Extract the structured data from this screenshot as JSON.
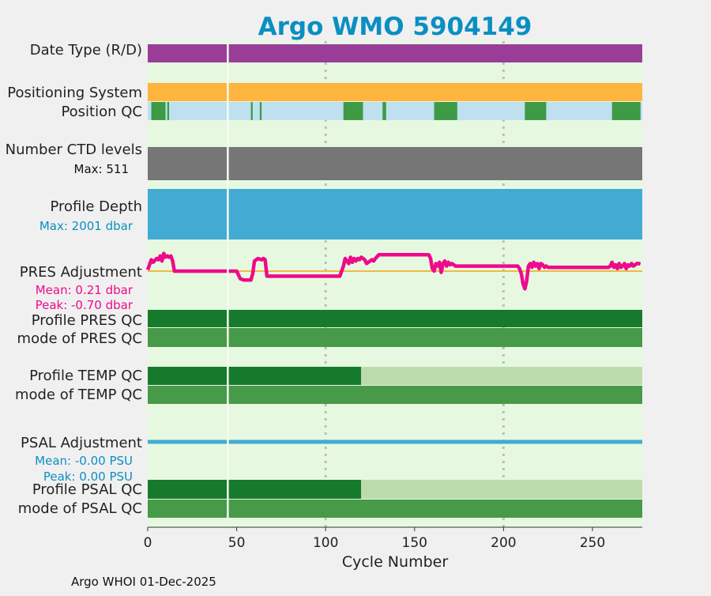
{
  "chart_data": {
    "type": "bar",
    "title": "Argo WMO 5904149",
    "xlabel": "Cycle Number",
    "xlim": [
      0,
      278
    ],
    "xticks": [
      0,
      50,
      100,
      150,
      200,
      250
    ],
    "vertical_gridlines": [
      100,
      200
    ],
    "footer": "Argo WHOI 01-Dec-2025",
    "colors": {
      "figure_bg": "#f0f0f0",
      "plot_bg": "#e6f9e0",
      "title": "#0a8fc2",
      "date_type": "#9a3d98",
      "positioning": "#ffb43e",
      "qc_good": "#3e9a45",
      "qc_missing": "#bee0ef",
      "ctd": "#767676",
      "depth": "#43abd3",
      "pres_line": "#ee0a8a",
      "pres_zero": "#f2b84a",
      "qc_dark": "#167a2c",
      "qc_mode": "#479a48",
      "qc_light": "#bcdcad",
      "psal_line": "#43abd3"
    },
    "rows": {
      "date_type": "Date Type (R/D)",
      "positioning": "Positioning System",
      "position_qc": "Position QC",
      "ctd_levels": "Number CTD levels",
      "ctd_max": "Max: 511",
      "profile_depth": "Profile Depth",
      "depth_max": "Max: 2001 dbar",
      "pres_adjustment": "PRES Adjustment",
      "pres_mean": "Mean: 0.21 dbar",
      "pres_peak": "Peak: -0.70 dbar",
      "profile_pres_qc": "Profile PRES QC",
      "mode_pres_qc": "mode of PRES QC",
      "profile_temp_qc": "Profile TEMP QC",
      "mode_temp_qc": "mode of TEMP QC",
      "psal_adjustment": "PSAL Adjustment",
      "psal_mean": "Mean: -0.00 PSU",
      "psal_peak": "Peak: 0.00 PSU",
      "profile_psal_qc": "Profile PSAL QC",
      "mode_psal_qc": "mode of PSAL QC"
    },
    "gap_cycle": 45,
    "position_qc_good_ranges": [
      [
        2,
        10
      ],
      [
        11,
        12
      ],
      [
        58,
        59
      ],
      [
        63,
        64
      ],
      [
        110,
        121
      ],
      [
        132,
        134
      ],
      [
        161,
        174
      ],
      [
        212,
        224
      ],
      [
        261,
        277
      ]
    ],
    "ctd_max_levels": 511,
    "depth_max_dbar": 2001,
    "pres_adjustment_series": {
      "x": [
        0,
        2,
        3,
        5,
        6,
        7,
        8,
        9,
        10,
        11,
        12,
        13,
        14,
        15,
        20,
        30,
        40,
        44,
        46,
        50,
        52,
        54,
        56,
        58,
        59,
        60,
        61,
        62,
        64,
        65,
        66,
        67,
        68,
        80,
        95,
        108,
        109,
        110,
        111,
        112,
        113,
        114,
        115,
        116,
        117,
        118,
        119,
        120,
        121,
        122,
        123,
        124,
        125,
        126,
        127,
        128,
        130,
        132,
        133,
        135,
        140,
        150,
        158,
        159,
        160,
        161,
        162,
        163,
        164,
        165,
        166,
        167,
        168,
        169,
        170,
        171,
        172,
        173,
        174,
        175,
        180,
        190,
        200,
        205,
        208,
        209,
        210,
        211,
        212,
        213,
        214,
        215,
        216,
        217,
        218,
        219,
        220,
        221,
        222,
        223,
        224,
        225,
        230,
        240,
        250,
        258,
        259,
        260,
        261,
        262,
        263,
        264,
        265,
        266,
        267,
        268,
        269,
        270,
        271,
        272,
        273,
        274,
        275,
        276,
        277
      ],
      "y": [
        0.05,
        0.45,
        0.35,
        0.5,
        0.45,
        0.6,
        0.4,
        0.7,
        0.55,
        0.6,
        0.55,
        0.6,
        0.4,
        0.0,
        0.0,
        0.0,
        0.0,
        0.0,
        0.0,
        0.0,
        -0.3,
        -0.35,
        -0.35,
        -0.35,
        -0.1,
        0.4,
        0.45,
        0.5,
        0.45,
        0.5,
        0.45,
        -0.2,
        -0.2,
        -0.2,
        -0.2,
        -0.2,
        0.0,
        0.2,
        0.5,
        0.4,
        0.3,
        0.55,
        0.35,
        0.5,
        0.4,
        0.5,
        0.45,
        0.55,
        0.5,
        0.45,
        0.3,
        0.35,
        0.4,
        0.45,
        0.4,
        0.5,
        0.65,
        0.65,
        0.65,
        0.65,
        0.65,
        0.65,
        0.65,
        0.5,
        0.1,
        0.0,
        0.3,
        0.2,
        0.35,
        -0.05,
        0.3,
        0.4,
        0.2,
        0.35,
        0.25,
        0.3,
        0.25,
        0.2,
        0.2,
        0.2,
        0.2,
        0.2,
        0.2,
        0.2,
        0.2,
        0.1,
        -0.1,
        -0.5,
        -0.7,
        -0.4,
        0.2,
        0.3,
        0.15,
        0.35,
        0.2,
        0.3,
        0.1,
        0.3,
        0.25,
        0.15,
        0.2,
        0.15,
        0.15,
        0.15,
        0.15,
        0.15,
        0.15,
        0.2,
        0.35,
        0.15,
        0.25,
        0.1,
        0.3,
        0.15,
        0.2,
        0.3,
        0.1,
        0.25,
        0.2,
        0.3,
        0.2,
        0.25,
        0.3,
        0.3,
        0.28
      ]
    },
    "temp_qc_dark_until": 120,
    "psal_qc_dark_until": 120
  }
}
